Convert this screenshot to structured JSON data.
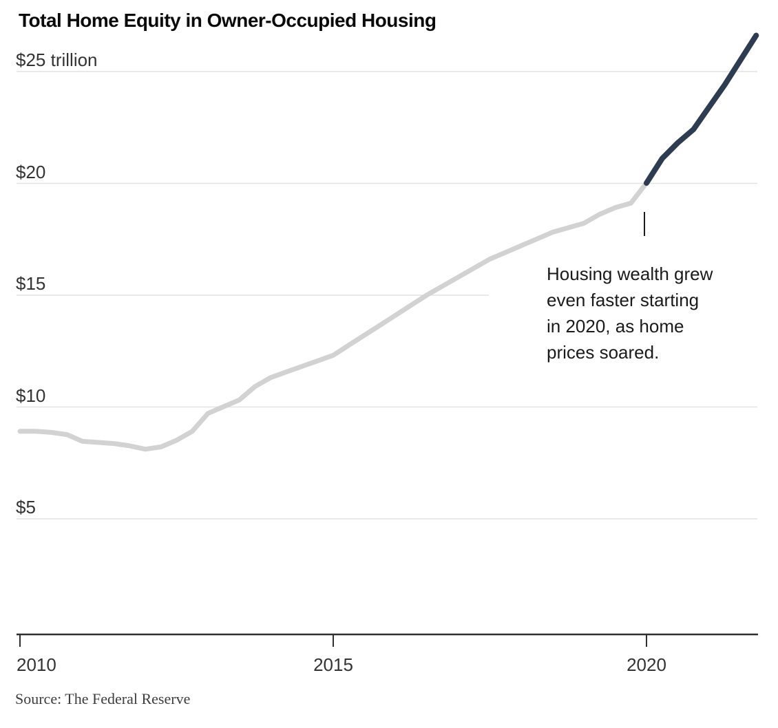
{
  "title": "Total Home Equity in Owner-Occupied Housing",
  "source": "Source: The Federal Reserve",
  "annotation": {
    "text": "Housing wealth grew\neven faster starting\nin 2020, as home\nprices soared.",
    "marker_year": 2020
  },
  "colors": {
    "line_gray": "#d2d2d2",
    "line_highlight": "#2d3c50",
    "gridline": "#e2e2e2",
    "axis": "#2f2f2f",
    "annotation_tick": "#1a1a1a"
  },
  "chart_data": {
    "type": "line",
    "title": "Total Home Equity in Owner-Occupied Housing",
    "xlabel": "",
    "ylabel": "trillions of dollars",
    "grid": true,
    "legend": false,
    "x": [
      2010.0,
      2010.25,
      2010.5,
      2010.75,
      2011.0,
      2011.25,
      2011.5,
      2011.75,
      2012.0,
      2012.25,
      2012.5,
      2012.75,
      2013.0,
      2013.25,
      2013.5,
      2013.75,
      2014.0,
      2014.25,
      2014.5,
      2014.75,
      2015.0,
      2015.25,
      2015.5,
      2015.75,
      2016.0,
      2016.25,
      2016.5,
      2016.75,
      2017.0,
      2017.25,
      2017.5,
      2017.75,
      2018.0,
      2018.25,
      2018.5,
      2018.75,
      2019.0,
      2019.25,
      2019.5,
      2019.75,
      2020.0,
      2020.25,
      2020.5,
      2020.75,
      2021.0,
      2021.25,
      2021.5,
      2021.75
    ],
    "series": [
      {
        "name": "Total home equity ($ trillions)",
        "values": [
          8.9,
          8.9,
          8.85,
          8.75,
          8.45,
          8.4,
          8.35,
          8.25,
          8.1,
          8.2,
          8.5,
          8.9,
          9.7,
          10.0,
          10.3,
          10.9,
          11.3,
          11.55,
          11.8,
          12.05,
          12.3,
          12.75,
          13.2,
          13.65,
          14.1,
          14.55,
          15.0,
          15.4,
          15.8,
          16.2,
          16.6,
          16.9,
          17.2,
          17.5,
          17.8,
          18.0,
          18.2,
          18.6,
          18.9,
          19.1,
          20.0,
          21.1,
          21.8,
          22.4,
          23.4,
          24.4,
          25.5,
          26.6
        ]
      }
    ],
    "highlight_from_x": 2020,
    "xaxis": {
      "tick_years": [
        2010,
        2015,
        2020
      ],
      "tick_labels": [
        "2010",
        "2015",
        "2020"
      ],
      "range": [
        2010,
        2021.8
      ]
    },
    "yaxis": {
      "tick_values": [
        25,
        20,
        15,
        10,
        5
      ],
      "tick_labels": [
        "$25 trillion",
        "$20",
        "$15",
        "$10",
        "$5"
      ],
      "ylim": [
        0,
        27
      ]
    }
  }
}
